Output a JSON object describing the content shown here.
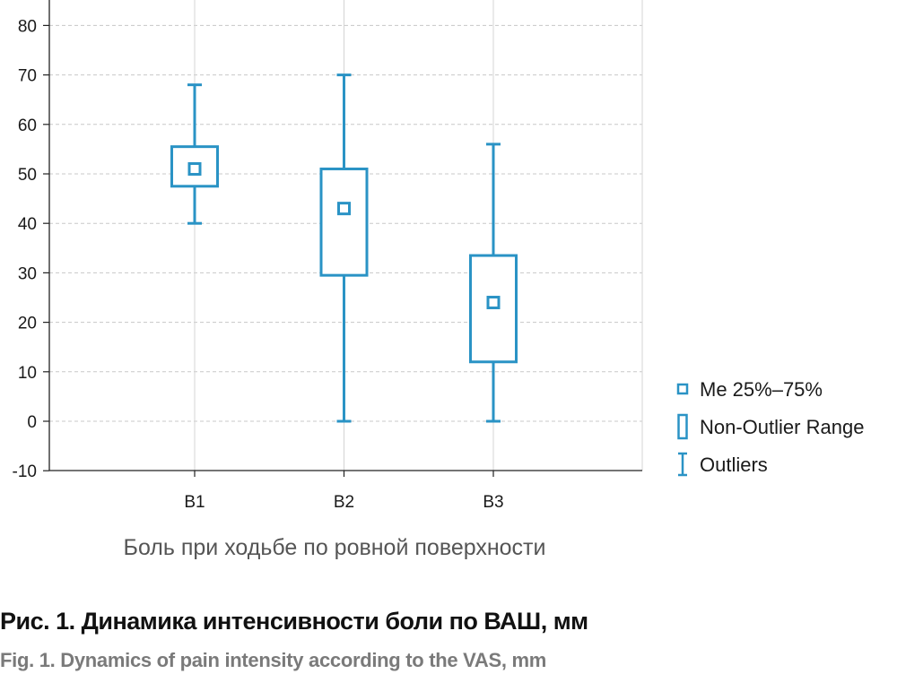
{
  "colors": {
    "box": "#2a93c5",
    "grid": "#c8c8c8",
    "axis": "#222222",
    "text": "#1a1a1a",
    "xlabel": "#555555",
    "caption_ru": "#111111",
    "caption_en": "#7a7a7a"
  },
  "chart_data": {
    "type": "boxplot",
    "xlabel": "Боль при ходьбе по ровной поверхности",
    "ylim": [
      -10,
      85
    ],
    "y_ticks": [
      -10,
      0,
      10,
      20,
      30,
      40,
      50,
      60,
      70,
      80
    ],
    "grid": true,
    "legend_position": "right",
    "categories": [
      "B1",
      "B2",
      "B3"
    ],
    "series": [
      {
        "category": "B1",
        "median": 51,
        "q1": 47.5,
        "q3": 55.5,
        "whisker_low": 40,
        "whisker_high": 68
      },
      {
        "category": "B2",
        "median": 43,
        "q1": 29.5,
        "q3": 51,
        "whisker_low": 0,
        "whisker_high": 70
      },
      {
        "category": "B3",
        "median": 24,
        "q1": 12,
        "q3": 33.5,
        "whisker_low": 0,
        "whisker_high": 56
      }
    ],
    "legend": [
      {
        "symbol": "median-square",
        "label": "Me 25%–75%"
      },
      {
        "symbol": "box",
        "label": "Non-Outlier Range"
      },
      {
        "symbol": "whisker",
        "label": "Outliers"
      }
    ]
  },
  "captions": {
    "ru": "Рис. 1. Динамика интенсивности боли по ВАШ, мм",
    "en": "Fig. 1. Dynamics of pain intensity according to the VAS, mm"
  }
}
